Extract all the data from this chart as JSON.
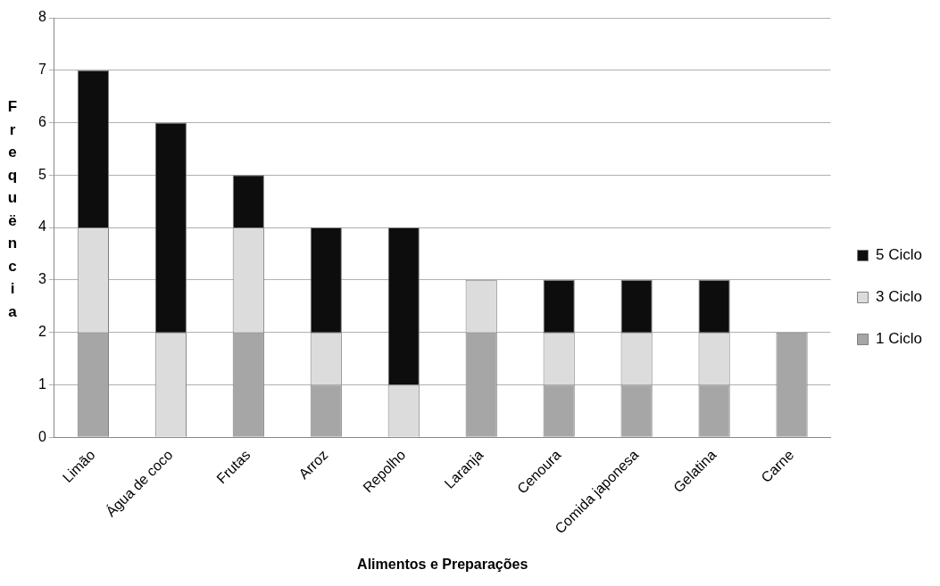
{
  "chart_data": {
    "type": "bar",
    "stacked": true,
    "xlabel": "Alimentos e Preparações",
    "ylabel": "Frequëncia",
    "categories": [
      "Limão",
      "Água de coco",
      "Frutas",
      "Arroz",
      "Repolho",
      "Laranja",
      "Cenoura",
      "Comida japonesa",
      "Gelatina",
      "Carne"
    ],
    "series": [
      {
        "name": "1 Ciclo",
        "color": "#a6a6a6",
        "values": [
          2,
          0,
          2,
          1,
          0,
          2,
          1,
          1,
          1,
          2
        ]
      },
      {
        "name": "3 Ciclo",
        "color": "#dcdcdc",
        "values": [
          2,
          2,
          2,
          1,
          1,
          1,
          1,
          1,
          1,
          0
        ]
      },
      {
        "name": "5 Ciclo",
        "color": "#0d0d0d",
        "values": [
          3,
          4,
          1,
          2,
          3,
          0,
          1,
          1,
          1,
          0
        ]
      }
    ],
    "ylim": [
      0,
      8
    ],
    "yticks": [
      0,
      1,
      2,
      3,
      4,
      5,
      6,
      7,
      8
    ],
    "grid": "y",
    "legend": "right"
  }
}
